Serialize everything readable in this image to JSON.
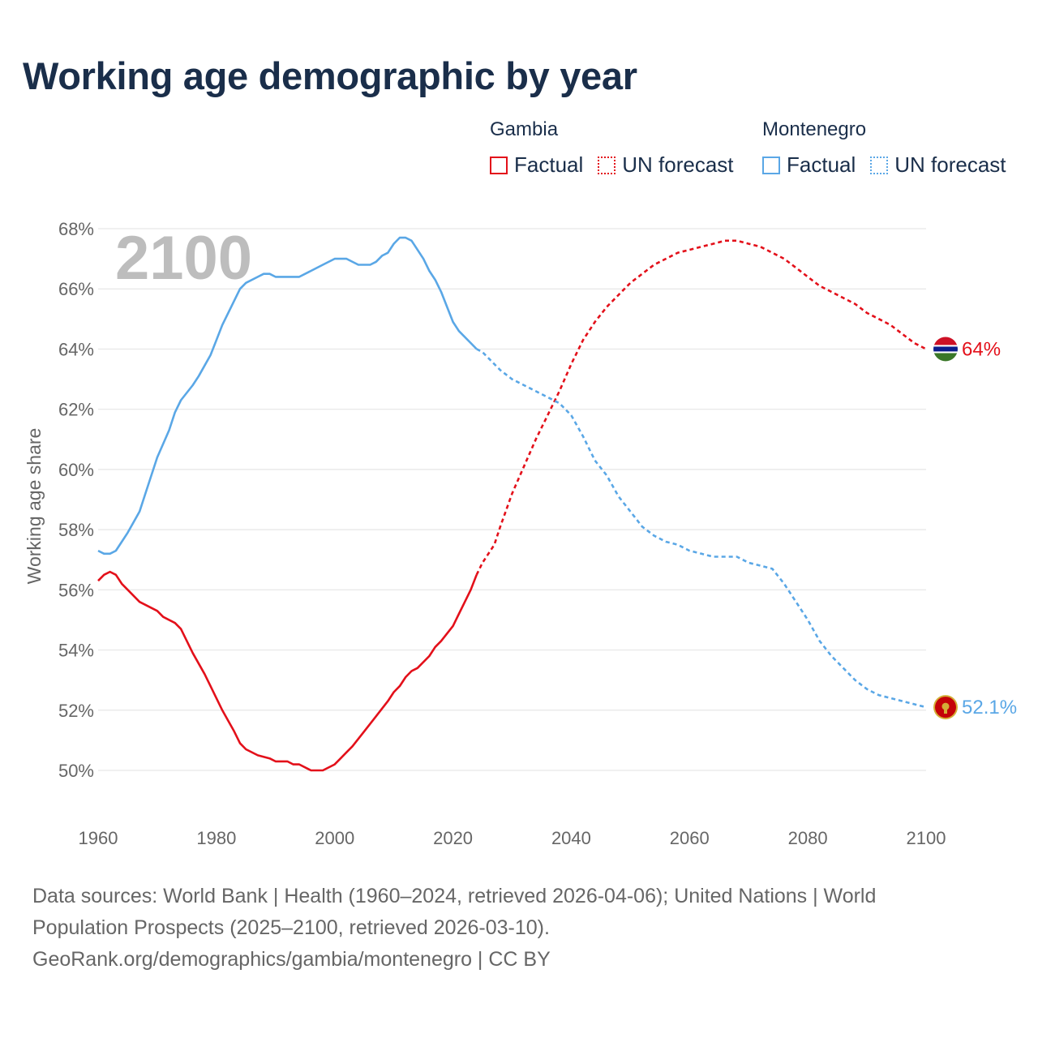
{
  "title": "Working age demographic by year",
  "legend": {
    "groups": [
      {
        "country": "Gambia",
        "factual_label": "Factual",
        "forecast_label": "UN forecast",
        "color": "#e3101a"
      },
      {
        "country": "Montenegro",
        "factual_label": "Factual",
        "forecast_label": "UN forecast",
        "color": "#5aa7e6"
      }
    ]
  },
  "chart_data": {
    "type": "line",
    "title": "Working age demographic by year",
    "xlabel": "",
    "ylabel": "Working age share",
    "xlim": [
      1960,
      2100
    ],
    "ylim": [
      50,
      68
    ],
    "x_ticks": [
      1960,
      1980,
      2000,
      2020,
      2040,
      2060,
      2080,
      2100
    ],
    "y_ticks": [
      "50%",
      "52%",
      "54%",
      "56%",
      "58%",
      "60%",
      "62%",
      "64%",
      "66%",
      "68%"
    ],
    "y_tick_values": [
      50,
      52,
      54,
      56,
      58,
      60,
      62,
      64,
      66,
      68
    ],
    "current_year": "2100",
    "factual_end_year": 2024,
    "grid": true,
    "series": [
      {
        "name": "Gambia",
        "color": "#e3101a",
        "end_label": "64%",
        "flag": "gambia",
        "points": [
          [
            1960,
            56.3
          ],
          [
            1961,
            56.5
          ],
          [
            1962,
            56.6
          ],
          [
            1963,
            56.5
          ],
          [
            1964,
            56.2
          ],
          [
            1965,
            56.0
          ],
          [
            1967,
            55.6
          ],
          [
            1970,
            55.3
          ],
          [
            1971,
            55.1
          ],
          [
            1973,
            54.9
          ],
          [
            1974,
            54.7
          ],
          [
            1976,
            53.9
          ],
          [
            1978,
            53.2
          ],
          [
            1979,
            52.8
          ],
          [
            1981,
            52.0
          ],
          [
            1983,
            51.3
          ],
          [
            1984,
            50.9
          ],
          [
            1985,
            50.7
          ],
          [
            1987,
            50.5
          ],
          [
            1989,
            50.4
          ],
          [
            1990,
            50.3
          ],
          [
            1992,
            50.3
          ],
          [
            1993,
            50.2
          ],
          [
            1994,
            50.2
          ],
          [
            1996,
            50.0
          ],
          [
            1998,
            50.0
          ],
          [
            2000,
            50.2
          ],
          [
            2001,
            50.4
          ],
          [
            2002,
            50.6
          ],
          [
            2003,
            50.8
          ],
          [
            2005,
            51.3
          ],
          [
            2007,
            51.8
          ],
          [
            2009,
            52.3
          ],
          [
            2010,
            52.6
          ],
          [
            2011,
            52.8
          ],
          [
            2012,
            53.1
          ],
          [
            2013,
            53.3
          ],
          [
            2014,
            53.4
          ],
          [
            2016,
            53.8
          ],
          [
            2017,
            54.1
          ],
          [
            2018,
            54.3
          ],
          [
            2020,
            54.8
          ],
          [
            2021,
            55.2
          ],
          [
            2022,
            55.6
          ],
          [
            2023,
            56.0
          ],
          [
            2024,
            56.5
          ],
          [
            2025,
            56.9
          ],
          [
            2027,
            57.5
          ],
          [
            2028,
            58.1
          ],
          [
            2030,
            59.2
          ],
          [
            2032,
            60.1
          ],
          [
            2034,
            61.0
          ],
          [
            2036,
            61.8
          ],
          [
            2038,
            62.6
          ],
          [
            2040,
            63.5
          ],
          [
            2042,
            64.3
          ],
          [
            2044,
            64.9
          ],
          [
            2046,
            65.4
          ],
          [
            2048,
            65.8
          ],
          [
            2050,
            66.2
          ],
          [
            2052,
            66.5
          ],
          [
            2054,
            66.8
          ],
          [
            2056,
            67.0
          ],
          [
            2058,
            67.2
          ],
          [
            2060,
            67.3
          ],
          [
            2062,
            67.4
          ],
          [
            2064,
            67.5
          ],
          [
            2066,
            67.6
          ],
          [
            2068,
            67.6
          ],
          [
            2070,
            67.5
          ],
          [
            2072,
            67.4
          ],
          [
            2074,
            67.2
          ],
          [
            2076,
            67.0
          ],
          [
            2078,
            66.7
          ],
          [
            2080,
            66.4
          ],
          [
            2082,
            66.1
          ],
          [
            2084,
            65.9
          ],
          [
            2086,
            65.7
          ],
          [
            2088,
            65.5
          ],
          [
            2090,
            65.2
          ],
          [
            2092,
            65.0
          ],
          [
            2094,
            64.8
          ],
          [
            2096,
            64.5
          ],
          [
            2098,
            64.2
          ],
          [
            2100,
            64.0
          ]
        ]
      },
      {
        "name": "Montenegro",
        "color": "#5aa7e6",
        "end_label": "52.1%",
        "flag": "montenegro",
        "points": [
          [
            1960,
            57.3
          ],
          [
            1961,
            57.2
          ],
          [
            1962,
            57.2
          ],
          [
            1963,
            57.3
          ],
          [
            1964,
            57.6
          ],
          [
            1965,
            57.9
          ],
          [
            1967,
            58.6
          ],
          [
            1968,
            59.2
          ],
          [
            1970,
            60.4
          ],
          [
            1972,
            61.3
          ],
          [
            1973,
            61.9
          ],
          [
            1974,
            62.3
          ],
          [
            1976,
            62.8
          ],
          [
            1977,
            63.1
          ],
          [
            1979,
            63.8
          ],
          [
            1980,
            64.3
          ],
          [
            1981,
            64.8
          ],
          [
            1983,
            65.6
          ],
          [
            1984,
            66.0
          ],
          [
            1985,
            66.2
          ],
          [
            1987,
            66.4
          ],
          [
            1988,
            66.5
          ],
          [
            1989,
            66.5
          ],
          [
            1990,
            66.4
          ],
          [
            1994,
            66.4
          ],
          [
            1996,
            66.6
          ],
          [
            1998,
            66.8
          ],
          [
            2000,
            67.0
          ],
          [
            2002,
            67.0
          ],
          [
            2004,
            66.8
          ],
          [
            2006,
            66.8
          ],
          [
            2007,
            66.9
          ],
          [
            2008,
            67.1
          ],
          [
            2009,
            67.2
          ],
          [
            2010,
            67.5
          ],
          [
            2011,
            67.7
          ],
          [
            2012,
            67.7
          ],
          [
            2013,
            67.6
          ],
          [
            2015,
            67.0
          ],
          [
            2016,
            66.6
          ],
          [
            2017,
            66.3
          ],
          [
            2018,
            65.9
          ],
          [
            2019,
            65.4
          ],
          [
            2020,
            64.9
          ],
          [
            2021,
            64.6
          ],
          [
            2023,
            64.2
          ],
          [
            2024,
            64.0
          ],
          [
            2025,
            63.9
          ],
          [
            2026,
            63.7
          ],
          [
            2028,
            63.3
          ],
          [
            2030,
            63.0
          ],
          [
            2032,
            62.8
          ],
          [
            2034,
            62.6
          ],
          [
            2036,
            62.4
          ],
          [
            2038,
            62.2
          ],
          [
            2040,
            61.8
          ],
          [
            2042,
            61.1
          ],
          [
            2044,
            60.3
          ],
          [
            2046,
            59.8
          ],
          [
            2048,
            59.1
          ],
          [
            2050,
            58.6
          ],
          [
            2052,
            58.1
          ],
          [
            2054,
            57.8
          ],
          [
            2056,
            57.6
          ],
          [
            2058,
            57.5
          ],
          [
            2060,
            57.3
          ],
          [
            2062,
            57.2
          ],
          [
            2064,
            57.1
          ],
          [
            2068,
            57.1
          ],
          [
            2070,
            56.9
          ],
          [
            2072,
            56.8
          ],
          [
            2074,
            56.7
          ],
          [
            2076,
            56.2
          ],
          [
            2078,
            55.6
          ],
          [
            2080,
            55.0
          ],
          [
            2082,
            54.3
          ],
          [
            2084,
            53.8
          ],
          [
            2086,
            53.4
          ],
          [
            2088,
            53.0
          ],
          [
            2090,
            52.7
          ],
          [
            2092,
            52.5
          ],
          [
            2094,
            52.4
          ],
          [
            2096,
            52.3
          ],
          [
            2098,
            52.2
          ],
          [
            2100,
            52.1
          ]
        ]
      }
    ]
  },
  "sources": {
    "line1": "Data sources: World Bank | Health (1960–2024, retrieved 2026-04-06); United Nations | World",
    "line2": "Population Prospects (2025–2100, retrieved 2026-03-10).",
    "line3": "GeoRank.org/demographics/gambia/montenegro | CC BY"
  }
}
